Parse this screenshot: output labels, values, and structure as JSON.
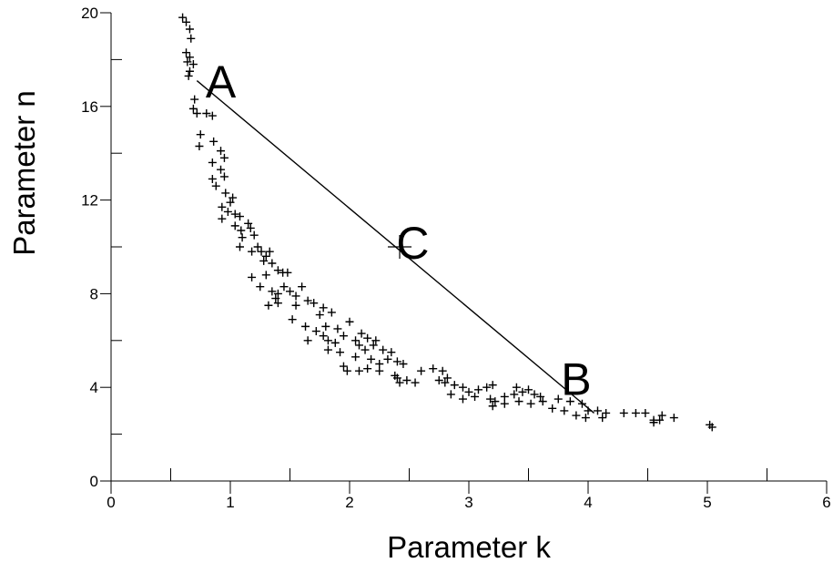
{
  "chart_data": {
    "type": "scatter",
    "title": "",
    "xlabel": "Parameter k",
    "ylabel": "Parameter n",
    "xlim": [
      0,
      6
    ],
    "ylim": [
      0,
      20
    ],
    "xticks": [
      0,
      1,
      2,
      3,
      4,
      5,
      6
    ],
    "yticks": [
      0,
      4,
      8,
      12,
      16,
      20
    ],
    "xtick_labels": [
      "0",
      "1",
      "2",
      "3",
      "4",
      "5",
      "6"
    ],
    "ytick_labels": [
      "0",
      "4",
      "8",
      "12",
      "16",
      "20"
    ],
    "grid": false,
    "series": [
      {
        "marker": "plus",
        "points": [
          [
            0.6,
            19.8
          ],
          [
            0.63,
            19.6
          ],
          [
            0.66,
            19.3
          ],
          [
            0.67,
            18.9
          ],
          [
            0.63,
            18.3
          ],
          [
            0.66,
            18.1
          ],
          [
            0.64,
            17.9
          ],
          [
            0.69,
            17.8
          ],
          [
            0.66,
            17.5
          ],
          [
            0.65,
            17.3
          ],
          [
            0.7,
            16.3
          ],
          [
            0.69,
            15.9
          ],
          [
            0.72,
            15.7
          ],
          [
            0.8,
            15.7
          ],
          [
            0.85,
            15.6
          ],
          [
            0.75,
            14.8
          ],
          [
            0.74,
            14.3
          ],
          [
            0.86,
            14.5
          ],
          [
            0.92,
            14.1
          ],
          [
            0.95,
            13.8
          ],
          [
            0.85,
            13.6
          ],
          [
            0.92,
            13.3
          ],
          [
            0.95,
            13.0
          ],
          [
            0.85,
            12.9
          ],
          [
            0.88,
            12.6
          ],
          [
            1.02,
            12.1
          ],
          [
            0.96,
            12.3
          ],
          [
            1.0,
            11.9
          ],
          [
            0.93,
            11.7
          ],
          [
            0.98,
            11.5
          ],
          [
            1.04,
            11.4
          ],
          [
            1.08,
            11.3
          ],
          [
            0.93,
            11.2
          ],
          [
            1.04,
            10.9
          ],
          [
            1.09,
            10.7
          ],
          [
            1.15,
            11.0
          ],
          [
            1.17,
            10.8
          ],
          [
            1.2,
            10.5
          ],
          [
            1.1,
            10.4
          ],
          [
            1.08,
            10.0
          ],
          [
            1.23,
            10.0
          ],
          [
            1.18,
            9.8
          ],
          [
            1.26,
            9.8
          ],
          [
            1.3,
            9.6
          ],
          [
            1.33,
            9.8
          ],
          [
            1.28,
            9.4
          ],
          [
            1.35,
            9.3
          ],
          [
            1.4,
            9.0
          ],
          [
            1.44,
            8.9
          ],
          [
            1.48,
            8.9
          ],
          [
            1.3,
            8.8
          ],
          [
            1.18,
            8.7
          ],
          [
            1.25,
            8.3
          ],
          [
            1.35,
            8.1
          ],
          [
            1.4,
            8.0
          ],
          [
            1.45,
            8.3
          ],
          [
            1.5,
            8.1
          ],
          [
            1.55,
            7.9
          ],
          [
            1.6,
            8.3
          ],
          [
            1.38,
            7.8
          ],
          [
            1.4,
            7.6
          ],
          [
            1.32,
            7.5
          ],
          [
            1.55,
            7.5
          ],
          [
            1.65,
            7.7
          ],
          [
            1.7,
            7.6
          ],
          [
            1.78,
            7.4
          ],
          [
            1.85,
            7.2
          ],
          [
            1.75,
            7.1
          ],
          [
            1.52,
            6.9
          ],
          [
            1.63,
            6.6
          ],
          [
            1.72,
            6.4
          ],
          [
            1.8,
            6.6
          ],
          [
            1.9,
            6.5
          ],
          [
            2.0,
            6.8
          ],
          [
            1.78,
            6.2
          ],
          [
            1.82,
            6.0
          ],
          [
            1.88,
            5.9
          ],
          [
            1.95,
            6.2
          ],
          [
            2.05,
            6.0
          ],
          [
            1.65,
            6.0
          ],
          [
            1.82,
            5.6
          ],
          [
            1.92,
            5.5
          ],
          [
            2.08,
            5.8
          ],
          [
            2.13,
            5.6
          ],
          [
            2.2,
            5.8
          ],
          [
            2.28,
            5.6
          ],
          [
            2.35,
            5.5
          ],
          [
            2.1,
            6.3
          ],
          [
            2.15,
            6.1
          ],
          [
            2.22,
            6.0
          ],
          [
            2.05,
            5.3
          ],
          [
            2.18,
            5.2
          ],
          [
            2.25,
            5.0
          ],
          [
            2.32,
            5.2
          ],
          [
            2.4,
            5.1
          ],
          [
            2.45,
            5.0
          ],
          [
            1.95,
            4.9
          ],
          [
            1.98,
            4.7
          ],
          [
            2.08,
            4.7
          ],
          [
            2.15,
            4.8
          ],
          [
            2.25,
            4.7
          ],
          [
            2.38,
            4.5
          ],
          [
            2.48,
            4.3
          ],
          [
            2.55,
            4.2
          ],
          [
            2.4,
            4.4
          ],
          [
            2.42,
            4.2
          ],
          [
            2.6,
            4.7
          ],
          [
            2.7,
            4.8
          ],
          [
            2.78,
            4.7
          ],
          [
            2.82,
            4.4
          ],
          [
            2.75,
            4.3
          ],
          [
            2.8,
            4.2
          ],
          [
            2.88,
            4.1
          ],
          [
            2.95,
            4.0
          ],
          [
            3.0,
            3.8
          ],
          [
            3.08,
            3.9
          ],
          [
            3.15,
            4.0
          ],
          [
            3.2,
            4.1
          ],
          [
            2.85,
            3.7
          ],
          [
            2.95,
            3.5
          ],
          [
            3.05,
            3.6
          ],
          [
            3.18,
            3.5
          ],
          [
            3.22,
            3.4
          ],
          [
            3.3,
            3.6
          ],
          [
            3.38,
            3.7
          ],
          [
            3.45,
            3.8
          ],
          [
            3.55,
            3.7
          ],
          [
            3.4,
            4.0
          ],
          [
            3.5,
            3.9
          ],
          [
            3.6,
            3.6
          ],
          [
            3.2,
            3.2
          ],
          [
            3.3,
            3.3
          ],
          [
            3.42,
            3.4
          ],
          [
            3.52,
            3.3
          ],
          [
            3.62,
            3.4
          ],
          [
            3.75,
            3.5
          ],
          [
            3.85,
            3.4
          ],
          [
            3.95,
            3.3
          ],
          [
            3.7,
            3.1
          ],
          [
            3.8,
            3.0
          ],
          [
            3.9,
            2.8
          ],
          [
            4.0,
            3.0
          ],
          [
            4.08,
            3.0
          ],
          [
            4.15,
            2.9
          ],
          [
            4.12,
            2.7
          ],
          [
            3.98,
            2.7
          ],
          [
            4.3,
            2.9
          ],
          [
            4.4,
            2.9
          ],
          [
            4.48,
            2.9
          ],
          [
            4.55,
            2.6
          ],
          [
            4.6,
            2.6
          ],
          [
            4.62,
            2.8
          ],
          [
            4.72,
            2.7
          ],
          [
            4.55,
            2.5
          ],
          [
            5.02,
            2.4
          ],
          [
            5.04,
            2.3
          ]
        ]
      }
    ],
    "line": {
      "from": [
        0.72,
        17.1
      ],
      "to": [
        4.05,
        2.9
      ]
    },
    "point_C": [
      2.42,
      10.0
    ],
    "annotations": [
      {
        "text": "A",
        "x": 0.92,
        "y": 16.9
      },
      {
        "text": "C",
        "x": 2.53,
        "y": 10.0
      },
      {
        "text": "B",
        "x": 3.9,
        "y": 4.2
      }
    ]
  }
}
